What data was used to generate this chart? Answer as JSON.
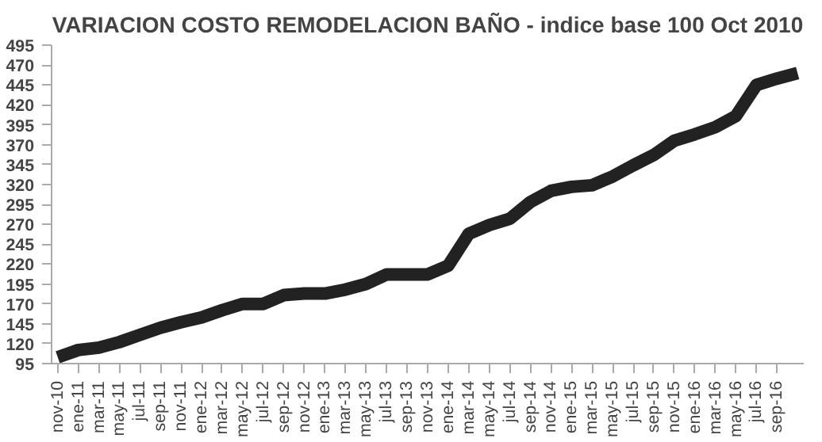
{
  "chart_data": {
    "type": "line",
    "title": "VARIACION COSTO REMODELACION BAÑO - indice base 100 Oct 2010",
    "categories": [
      "nov-10",
      "ene-11",
      "mar-11",
      "may-11",
      "jul-11",
      "sep-11",
      "nov-11",
      "ene-12",
      "mar-12",
      "may-12",
      "jul-12",
      "sep-12",
      "nov-12",
      "ene-13",
      "mar-13",
      "may-13",
      "jul-13",
      "sep-13",
      "nov-13",
      "ene-14",
      "mar-14",
      "may-14",
      "jul-14",
      "sep-14",
      "nov-14",
      "ene-15",
      "mar-15",
      "may-15",
      "jul-15",
      "sep-15",
      "nov-15",
      "ene-16",
      "mar-16",
      "may-16",
      "jul-16",
      "sep-16",
      null
    ],
    "series": [
      {
        "color": "#222222",
        "values": [
          103,
          112,
          115,
          122,
          131,
          140,
          147,
          153,
          162,
          170,
          170,
          181,
          183,
          183,
          188,
          195,
          207,
          207,
          207,
          218,
          258,
          269,
          277,
          298,
          312,
          317,
          319,
          330,
          344,
          357,
          375,
          383,
          392,
          406,
          445,
          453,
          460
        ]
      }
    ],
    "ylim": [
      95,
      495
    ],
    "yticks": [
      95,
      120,
      145,
      170,
      195,
      220,
      245,
      270,
      295,
      320,
      345,
      370,
      395,
      420,
      445,
      470,
      495
    ],
    "grid": false,
    "marker": "none",
    "line_style": "solid"
  }
}
